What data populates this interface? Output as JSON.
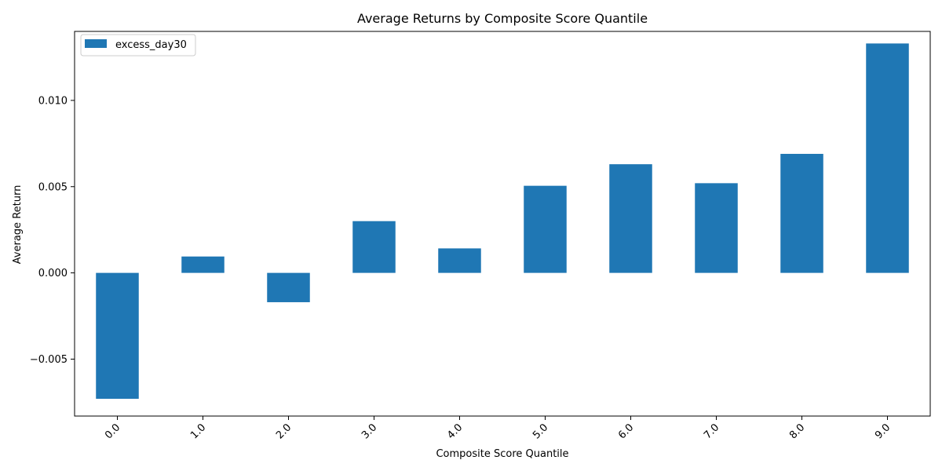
{
  "chart_data": {
    "type": "bar",
    "title": "Average Returns by Composite Score Quantile",
    "xlabel": "Composite Score Quantile",
    "ylabel": "Average Return",
    "categories": [
      "0.0",
      "1.0",
      "2.0",
      "3.0",
      "4.0",
      "5.0",
      "6.0",
      "7.0",
      "8.0",
      "9.0"
    ],
    "series": [
      {
        "name": "excess_day30",
        "values": [
          -0.0073,
          0.00095,
          -0.0017,
          0.003,
          0.00142,
          0.00505,
          0.0063,
          0.0052,
          0.0069,
          0.0133
        ],
        "color": "#1f77b4"
      }
    ],
    "ylim": [
      -0.0083,
      0.014
    ],
    "yticks": [
      -0.005,
      0.0,
      0.005,
      0.01
    ],
    "ytick_labels": [
      "−0.005",
      "0.000",
      "0.005",
      "0.010"
    ],
    "xtick_rotation_deg": 45,
    "grid": false,
    "legend_position": "top-left"
  }
}
